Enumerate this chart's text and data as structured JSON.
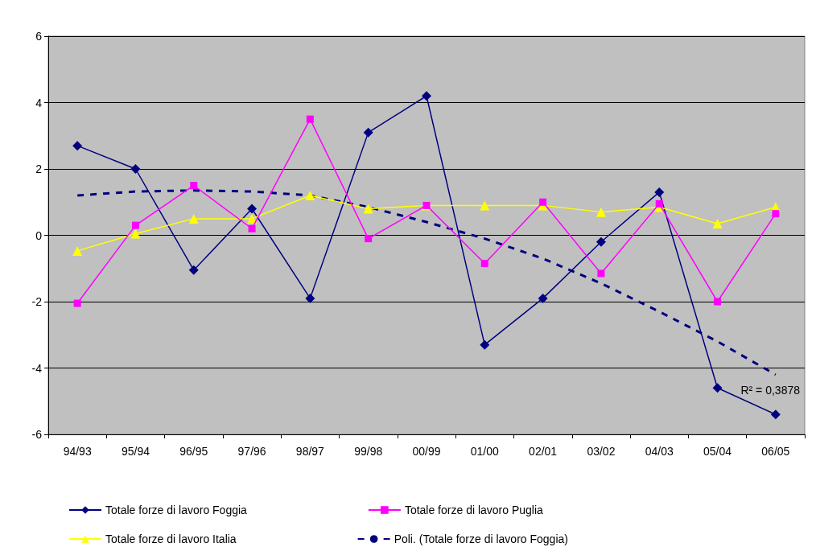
{
  "chart_data": {
    "type": "line",
    "categories": [
      "94/93",
      "95/94",
      "96/95",
      "97/96",
      "98/97",
      "99/98",
      "00/99",
      "01/00",
      "02/01",
      "03/02",
      "04/03",
      "05/04",
      "06/05"
    ],
    "series": [
      {
        "name": "Totale forze di lavoro Foggia",
        "color": "#000080",
        "marker": "diamond",
        "values": [
          2.7,
          2.0,
          -1.05,
          0.8,
          -1.9,
          3.1,
          4.2,
          -3.3,
          -1.9,
          -0.2,
          1.3,
          -4.6,
          -5.4
        ]
      },
      {
        "name": "Totale forze di lavoro Puglia",
        "color": "#ff00ff",
        "marker": "square",
        "values": [
          -2.05,
          0.3,
          1.5,
          0.2,
          3.5,
          -0.1,
          0.9,
          -0.85,
          1.0,
          -1.15,
          0.95,
          -2.0,
          0.65
        ]
      },
      {
        "name": "Totale forze di lavoro Italia",
        "color": "#ffff00",
        "marker": "triangle",
        "values": [
          -0.47,
          0.05,
          0.5,
          0.5,
          1.2,
          0.8,
          0.9,
          0.9,
          0.9,
          0.7,
          0.85,
          0.35,
          0.85
        ]
      },
      {
        "name": "Poli. (Totale forze di lavoro Foggia)",
        "color": "#000080",
        "marker": "none",
        "line_style": "dashed",
        "values": [
          1.2,
          1.32,
          1.35,
          1.32,
          1.2,
          0.85,
          0.4,
          -0.1,
          -0.7,
          -1.45,
          -2.3,
          -3.2,
          -4.2
        ]
      }
    ],
    "ylim": [
      -6,
      6
    ],
    "yticks": [
      -6,
      -4,
      -2,
      0,
      2,
      4,
      6
    ],
    "grid": "y",
    "legend": "bottom",
    "annotations": [
      "R² = 0,3878"
    ]
  }
}
